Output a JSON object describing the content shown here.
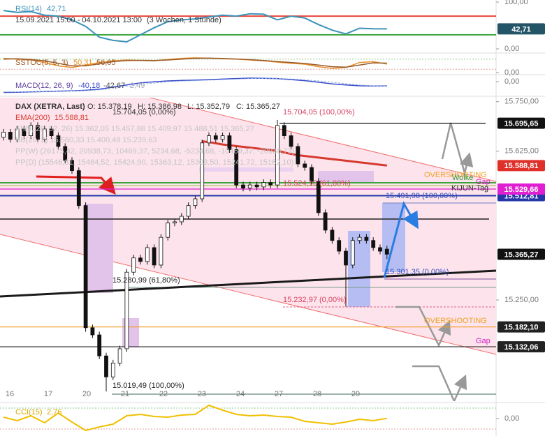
{
  "rsi": {
    "label": "RSI(14)",
    "legend_value": "42,71",
    "range": "15.09.2021 15:00 - 04.10.2021 13:00",
    "period": "(3 Wochen, 1 Stunde)",
    "ylim": [
      0,
      100
    ],
    "yticks": [
      {
        "value": 100,
        "label": "100,00"
      },
      {
        "value": 0,
        "label": "0,00"
      }
    ],
    "levels": [
      {
        "value": 70,
        "color": "#e8453c"
      },
      {
        "value": 30,
        "color": "#3aa53a"
      }
    ],
    "badge": {
      "value": 42.71,
      "label": "42,71",
      "color": "#245566"
    },
    "color": "#3a92b8",
    "values": [
      82,
      78,
      80,
      72,
      70,
      62,
      48,
      25,
      18,
      15,
      30,
      45,
      58,
      62,
      64,
      68,
      72,
      70,
      75,
      74,
      62,
      70,
      66,
      52,
      40,
      32,
      44,
      43,
      42.71
    ]
  },
  "stoch": {
    "label": "SSTOC(5, 5, 3)",
    "ylim": [
      0,
      100
    ],
    "yticks": [
      {
        "value": 0,
        "label": "0,00"
      }
    ],
    "levels": [
      {
        "value": 80,
        "color": "#8fc98f"
      },
      {
        "value": 20,
        "color": "#e89a9a"
      }
    ],
    "series": [
      {
        "name": "50,31",
        "color": "#e8902a",
        "values": [
          85,
          80,
          75,
          60,
          40,
          30,
          45,
          60,
          70,
          75,
          72,
          70,
          78,
          85,
          88,
          86,
          82,
          80,
          75,
          70,
          62,
          55,
          50,
          35,
          25,
          30,
          60,
          65,
          50.31
        ]
      },
      {
        "name": "56,05",
        "color": "#9a5a2a",
        "values": [
          80,
          82,
          78,
          70,
          55,
          40,
          40,
          52,
          65,
          72,
          73,
          72,
          75,
          80,
          85,
          86,
          84,
          81,
          77,
          72,
          66,
          60,
          54,
          45,
          35,
          32,
          45,
          58,
          56.05
        ]
      }
    ]
  },
  "macd": {
    "label": "MACD(12, 26, 9)",
    "ylim": [
      -110,
      60
    ],
    "yticks": [
      {
        "value": 0,
        "label": "0,00"
      }
    ],
    "histogram_label": "2,49",
    "series": [
      {
        "name": "-40,18",
        "color": "#3548c8",
        "values": [
          -100,
          -98,
          -95,
          -92,
          -88,
          -85,
          -80,
          -70,
          -50,
          -30,
          -10,
          0,
          8,
          12,
          15,
          20,
          25,
          30,
          34,
          32,
          30,
          20,
          10,
          -5,
          -20,
          -30,
          -38,
          -40,
          -40.18
        ]
      },
      {
        "name": "-42,67",
        "color": "#8fb0e0",
        "values": [
          -95,
          -96,
          -95,
          -93,
          -90,
          -87,
          -83,
          -76,
          -62,
          -45,
          -25,
          -12,
          0,
          6,
          10,
          15,
          20,
          25,
          30,
          31,
          31,
          26,
          18,
          8,
          -5,
          -18,
          -30,
          -38,
          -42.67
        ]
      }
    ]
  },
  "main": {
    "instrument": "DAX (XETRA, Last)",
    "ohlc": [
      "O: 15.378,19",
      "H: 15.386,98",
      "L: 15.352,79",
      "C: 15.365,27"
    ],
    "ema": {
      "label": "EMA(200)",
      "legend_value": "15.588,81",
      "color": "#d63a2e",
      "values": [
        null,
        null,
        null,
        null,
        null,
        null,
        null,
        null,
        null,
        null,
        null,
        null,
        null,
        null,
        null,
        null,
        null,
        null,
        null,
        null,
        null,
        null,
        null,
        null,
        null,
        null,
        null,
        null,
        null,
        15650,
        15648,
        15645,
        15642,
        15640,
        15638,
        15636,
        15634,
        15632,
        15630,
        15628,
        15626,
        15622,
        15618,
        15615,
        15613,
        15611,
        15609,
        15607,
        15605,
        15603,
        15601,
        15599,
        15597,
        15595,
        15593,
        15591,
        15588.81
      ]
    },
    "faded_legends": [
      "Kh(9, 26, 52, 26)  15.362,05  15.457,88  15.409,97  15.488,51  15.365,27",
      "BB(20, 2)  15.580,33  15.400,48  15.239,63",
      "PP(W)  (26175,42, 20938,73, 10469,37, 5234,68, -5234,68, -10469,37, -20938,73)",
      "PP(D)  (15546,31, 15484,52, 15424,90, 15363,12, 15303,50, 15241,72, 15182,10)"
    ],
    "ylim": [
      14995,
      15760
    ],
    "yticks": [
      {
        "value": 15750,
        "label": "15.750,00"
      },
      {
        "value": 15625,
        "label": "15.625,00"
      },
      {
        "value": 15250,
        "label": "15.250,00"
      }
    ],
    "x_labels": [
      "16",
      "17",
      "20",
      "21",
      "22",
      "23",
      "24",
      "27",
      "28",
      "29"
    ],
    "candles": {
      "open": [
        15660,
        15673,
        15655,
        15681,
        15664,
        15690,
        15655,
        15681,
        15664,
        15637,
        15602,
        15576,
        15488,
        15180,
        15162,
        15109,
        15056,
        15091,
        15127,
        15320,
        15356,
        15347,
        15382,
        15338,
        15408,
        15444,
        15447,
        15461,
        15488,
        15505,
        15646,
        15664,
        15655,
        15664,
        15629,
        15540,
        15532,
        15540,
        15535,
        15546,
        15540,
        15690,
        15664,
        15637,
        15593,
        15584,
        15549,
        15470,
        15426,
        15400,
        15373,
        15338,
        15400,
        15408,
        15400,
        15382,
        15378.19
      ],
      "high": [
        15681,
        15681,
        15689,
        15689,
        15698,
        15698,
        15689,
        15689,
        15672,
        15645,
        15610,
        15584,
        15496,
        15188,
        15170,
        15117,
        15099,
        15135,
        15328,
        15364,
        15364,
        15390,
        15390,
        15416,
        15452,
        15455,
        15469,
        15496,
        15513,
        15654,
        15672,
        15672,
        15672,
        15672,
        15637,
        15548,
        15548,
        15548,
        15554,
        15554,
        15704.05,
        15698,
        15672,
        15645,
        15601,
        15592,
        15557,
        15478,
        15434,
        15408,
        15381,
        15408,
        15416,
        15416,
        15408,
        15390,
        15386.98
      ],
      "low": [
        15652,
        15647,
        15647,
        15656,
        15656,
        15647,
        15647,
        15656,
        15629,
        15594,
        15568,
        15480,
        15170,
        15154,
        15101,
        15019.49,
        15048,
        15083,
        15119,
        15312,
        15339,
        15339,
        15330,
        15330,
        15400,
        15436,
        15439,
        15453,
        15480,
        15497,
        15638,
        15647,
        15647,
        15621,
        15532,
        15524,
        15524,
        15527,
        15527,
        15532,
        15532,
        15656,
        15629,
        15585,
        15576,
        15541,
        15462,
        15418,
        15392,
        15365,
        15232.97,
        15330,
        15392,
        15392,
        15374,
        15365,
        15352.79
      ],
      "close": [
        15673,
        15655,
        15681,
        15664,
        15690,
        15655,
        15681,
        15664,
        15637,
        15602,
        15576,
        15488,
        15180,
        15162,
        15109,
        15056,
        15091,
        15127,
        15320,
        15356,
        15347,
        15382,
        15338,
        15408,
        15444,
        15447,
        15461,
        15488,
        15505,
        15646,
        15664,
        15655,
        15664,
        15629,
        15540,
        15532,
        15540,
        15535,
        15546,
        15540,
        15690,
        15664,
        15637,
        15593,
        15584,
        15549,
        15470,
        15426,
        15400,
        15373,
        15338,
        15400,
        15408,
        15400,
        15382,
        15373,
        15365.27
      ]
    },
    "levels": [
      {
        "value": 15695.65,
        "label": "15.695,65",
        "color": "#111111"
      },
      {
        "value": 15588.81,
        "label": "15.588,81",
        "color": "#e0302a"
      },
      {
        "value": 15512.81,
        "label": "15.512,81",
        "color": "#2436a8"
      },
      {
        "value": 15529.66,
        "label": "15.529,66",
        "color": "#e020d0"
      },
      {
        "value": 15365.27,
        "label": "15.365,27",
        "color": "#111111"
      },
      {
        "value": 15182.1,
        "label": "15.182,10",
        "color": "#222222"
      },
      {
        "value": 15132.06,
        "label": "15.132,06",
        "color": "#222222"
      }
    ],
    "annotations": [
      {
        "text": "15.704,05 (0,00%)",
        "color": "#333333"
      },
      {
        "text": "15.704,05 (100,00%)",
        "color": "#d94060"
      },
      {
        "text": "15.524,10 (61,80%)",
        "color": "#d94060"
      },
      {
        "text": "15.491,98 (100,00%)",
        "color": "#3550c0"
      },
      {
        "text": "15.301,35 (0,00%)",
        "color": "#3550c0"
      },
      {
        "text": "15.280,99 (61,80%)",
        "color": "#222222"
      },
      {
        "text": "15.232,97 (0,00%)",
        "color": "#d94060"
      },
      {
        "text": "15.019,49 (100,00%)",
        "color": "#222222"
      },
      {
        "text": "OVERSHOOTING",
        "color": "#f0a020"
      },
      {
        "text": "Wolke",
        "color": "#2e9a2e"
      },
      {
        "text": "Gap",
        "color": "#d020c0"
      },
      {
        "text": "KIJUN-Tag",
        "color": "#333333"
      },
      {
        "text": "OVERSHOOTING",
        "color": "#f0a020"
      },
      {
        "text": "Gap",
        "color": "#d020c0"
      }
    ]
  },
  "cci": {
    "label": "CCI(15)",
    "legend_value": "2,76",
    "ylim": [
      -200,
      200
    ],
    "yticks": [
      {
        "value": 0,
        "label": "0,00"
      }
    ],
    "color": "#f0c000",
    "values": [
      20,
      -30,
      40,
      -60,
      80,
      -50,
      -170,
      -120,
      -80,
      40,
      60,
      30,
      20,
      50,
      60,
      190,
      120,
      60,
      40,
      50,
      30,
      20,
      -40,
      -60,
      -80,
      -50,
      -10,
      -30,
      2.76
    ]
  }
}
